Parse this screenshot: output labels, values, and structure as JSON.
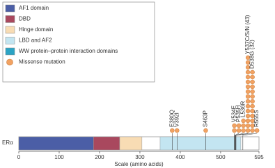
{
  "protein_label": "ERα",
  "legend": [
    {
      "label": "AF1 domain",
      "color": "#4b5ea6"
    },
    {
      "label": "DBD",
      "color": "#a9485e"
    },
    {
      "label": "Hinge domain",
      "color": "#f8dcb4"
    },
    {
      "label": "LBD and AF2",
      "color": "#c3e5f1"
    },
    {
      "label": "WW protein–protein interaction domains",
      "color": "#2ba3c4"
    },
    {
      "label": "Missense mutation",
      "color": "#f2a262"
    }
  ],
  "domains": [
    {
      "start": 0,
      "end": 185,
      "color": "#4b5ea6"
    },
    {
      "start": 185,
      "end": 250,
      "color": "#a9485e"
    },
    {
      "start": 250,
      "end": 305,
      "color": "#f8dcb4"
    },
    {
      "start": 350,
      "end": 550,
      "color": "#c3e5f1"
    }
  ],
  "axis": {
    "title": "Scale (amino acids)",
    "lim": [
      0,
      595
    ],
    "ticks": [
      0,
      100,
      200,
      300,
      400,
      500,
      595
    ]
  },
  "mutations": [
    {
      "label": "E380Q",
      "position": 380,
      "circles": 1
    },
    {
      "label": "V392I",
      "position": 392,
      "circles": 1
    },
    {
      "label": "S463P",
      "position": 463,
      "circles": 1
    },
    {
      "label": "V534E",
      "position": 534,
      "circles": 2
    },
    {
      "label": "P535H",
      "position": 535,
      "circles": 2
    },
    {
      "label": "L536R",
      "position": 536,
      "circles": 3
    },
    {
      "label": "Y537C/S/N (43)",
      "position": 537,
      "circles": 16
    },
    {
      "label": "D538G (32)",
      "position": 538,
      "circles": 13
    },
    {
      "label": "R555S",
      "position": 555,
      "circles": 1
    }
  ]
}
